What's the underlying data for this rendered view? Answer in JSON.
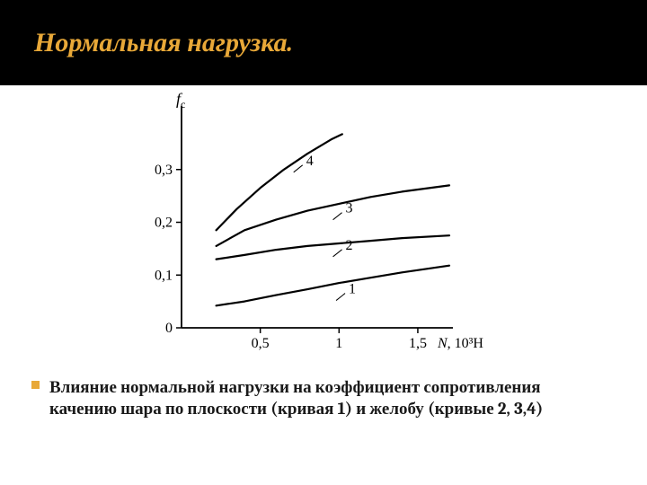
{
  "slide": {
    "title": "Нормальная нагрузка.",
    "caption": "Влияние нормальной нагрузки на коэффициент сопротивления качению шара по плоскости (кривая 1) и желобу (кривые 2, 3,4)"
  },
  "chart": {
    "type": "line",
    "y_axis_label_italic": "f",
    "y_axis_label_sub": "c",
    "x_axis_label_italic": "N",
    "x_axis_unit": ", 10³H",
    "xlim": [
      0,
      1.7
    ],
    "ylim": [
      0,
      0.4
    ],
    "x_ticks": [
      0.5,
      1,
      1.5
    ],
    "x_tick_labels": [
      "0,5",
      "1",
      "1,5"
    ],
    "y_ticks": [
      0,
      0.1,
      0.2,
      0.3
    ],
    "y_tick_labels": [
      "0",
      "0,1",
      "0,2",
      "0,3"
    ],
    "background_color": "#ffffff",
    "axis_color": "#000000",
    "line_color": "#000000",
    "line_width": 2.2,
    "tick_fontsize": 16,
    "label_fontsize": 18,
    "curve_label_fontsize": 16,
    "series": [
      {
        "label": "1",
        "label_pos": {
          "x": 1.05,
          "y": 0.062
        },
        "points": [
          [
            0.22,
            0.042
          ],
          [
            0.4,
            0.05
          ],
          [
            0.6,
            0.062
          ],
          [
            0.8,
            0.073
          ],
          [
            1.0,
            0.085
          ],
          [
            1.2,
            0.095
          ],
          [
            1.4,
            0.105
          ],
          [
            1.7,
            0.118
          ]
        ]
      },
      {
        "label": "2",
        "label_pos": {
          "x": 1.03,
          "y": 0.145
        },
        "points": [
          [
            0.22,
            0.13
          ],
          [
            0.4,
            0.138
          ],
          [
            0.6,
            0.148
          ],
          [
            0.8,
            0.155
          ],
          [
            1.0,
            0.16
          ],
          [
            1.2,
            0.165
          ],
          [
            1.4,
            0.17
          ],
          [
            1.7,
            0.175
          ]
        ]
      },
      {
        "label": "3",
        "label_pos": {
          "x": 1.03,
          "y": 0.215
        },
        "points": [
          [
            0.22,
            0.155
          ],
          [
            0.4,
            0.185
          ],
          [
            0.6,
            0.205
          ],
          [
            0.8,
            0.222
          ],
          [
            1.0,
            0.235
          ],
          [
            1.2,
            0.248
          ],
          [
            1.4,
            0.258
          ],
          [
            1.7,
            0.27
          ]
        ]
      },
      {
        "label": "4",
        "label_pos": {
          "x": 0.78,
          "y": 0.305
        },
        "points": [
          [
            0.22,
            0.185
          ],
          [
            0.35,
            0.225
          ],
          [
            0.5,
            0.265
          ],
          [
            0.65,
            0.3
          ],
          [
            0.8,
            0.33
          ],
          [
            0.95,
            0.357
          ],
          [
            1.02,
            0.367
          ]
        ]
      }
    ]
  }
}
